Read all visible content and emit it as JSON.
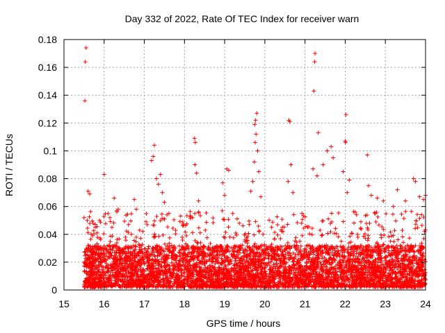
{
  "chart_data": {
    "type": "scatter",
    "title": "Day 332 of 2022, Rate Of TEC Index for receiver warn",
    "xlabel": "GPS time / hours",
    "ylabel": "ROTI / TECUs",
    "xlim": [
      15,
      24
    ],
    "ylim": [
      0,
      0.18
    ],
    "xticks": [
      "15",
      "16",
      "17",
      "18",
      "19",
      "20",
      "21",
      "22",
      "23",
      "24"
    ],
    "yticks": [
      "0",
      "0.02",
      "0.04",
      "0.06",
      "0.08",
      "0.1",
      "0.12",
      "0.14",
      "0.16",
      "0.18"
    ],
    "grid": true,
    "marker": "plus",
    "color": "#ff0000",
    "series": [
      {
        "name": "ROTI",
        "points": [
          [
            15.55,
            0.174
          ],
          [
            15.53,
            0.164
          ],
          [
            15.52,
            0.136
          ],
          [
            15.6,
            0.071
          ],
          [
            15.64,
            0.069
          ],
          [
            15.5,
            0.052
          ],
          [
            15.58,
            0.05
          ],
          [
            16.0,
            0.083
          ],
          [
            16.1,
            0.055
          ],
          [
            16.25,
            0.066
          ],
          [
            16.35,
            0.058
          ],
          [
            16.75,
            0.065
          ],
          [
            16.8,
            0.058
          ],
          [
            17.25,
            0.104
          ],
          [
            17.22,
            0.096
          ],
          [
            17.18,
            0.093
          ],
          [
            17.3,
            0.08
          ],
          [
            17.35,
            0.076
          ],
          [
            17.45,
            0.07
          ],
          [
            17.5,
            0.063
          ],
          [
            17.4,
            0.083
          ],
          [
            18.25,
            0.109
          ],
          [
            18.27,
            0.106
          ],
          [
            18.26,
            0.09
          ],
          [
            18.3,
            0.084
          ],
          [
            18.35,
            0.064
          ],
          [
            18.2,
            0.052
          ],
          [
            18.95,
            0.077
          ],
          [
            19.05,
            0.087
          ],
          [
            19.1,
            0.086
          ],
          [
            19.0,
            0.068
          ],
          [
            19.2,
            0.055
          ],
          [
            19.8,
            0.127
          ],
          [
            19.77,
            0.122
          ],
          [
            19.75,
            0.119
          ],
          [
            19.78,
            0.112
          ],
          [
            19.76,
            0.106
          ],
          [
            19.82,
            0.1
          ],
          [
            19.74,
            0.092
          ],
          [
            19.85,
            0.085
          ],
          [
            19.7,
            0.078
          ],
          [
            19.65,
            0.071
          ],
          [
            19.9,
            0.067
          ],
          [
            20.6,
            0.122
          ],
          [
            20.62,
            0.121
          ],
          [
            20.65,
            0.09
          ],
          [
            20.58,
            0.078
          ],
          [
            20.7,
            0.07
          ],
          [
            21.25,
            0.17
          ],
          [
            21.24,
            0.164
          ],
          [
            21.22,
            0.143
          ],
          [
            21.33,
            0.113
          ],
          [
            21.2,
            0.087
          ],
          [
            21.3,
            0.082
          ],
          [
            21.45,
            0.09
          ],
          [
            21.55,
            0.1
          ],
          [
            21.65,
            0.103
          ],
          [
            21.7,
            0.095
          ],
          [
            22.02,
            0.126
          ],
          [
            22.0,
            0.107
          ],
          [
            22.01,
            0.106
          ],
          [
            21.95,
            0.085
          ],
          [
            22.1,
            0.079
          ],
          [
            22.05,
            0.07
          ],
          [
            22.55,
            0.097
          ],
          [
            22.58,
            0.075
          ],
          [
            22.65,
            0.068
          ],
          [
            22.8,
            0.066
          ],
          [
            22.95,
            0.064
          ],
          [
            23.2,
            0.06
          ],
          [
            23.3,
            0.072
          ],
          [
            23.5,
            0.064
          ],
          [
            23.7,
            0.08
          ],
          [
            23.75,
            0.078
          ],
          [
            23.85,
            0.067
          ],
          [
            23.95,
            0.065
          ],
          [
            24.0,
            0.068
          ]
        ],
        "dense_band": {
          "x_range": [
            15.5,
            24.0
          ],
          "y_typical_max": 0.03,
          "y_spread_max": 0.055,
          "description_samples": 5200
        }
      }
    ]
  }
}
